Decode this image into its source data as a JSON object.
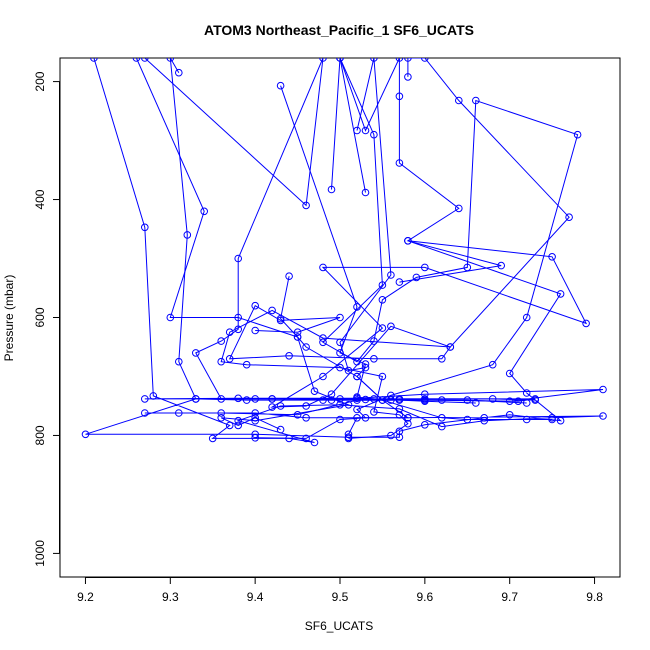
{
  "chart_data": {
    "type": "line",
    "title": "ATOM3 Northeast_Pacific_1 SF6_UCATS",
    "xlabel": "SF6_UCATS",
    "ylabel": "Pressure (mbar)",
    "xlim": [
      9.17,
      9.83
    ],
    "ylim": [
      1040,
      160
    ],
    "y_reversed": true,
    "x_ticks": [
      9.2,
      9.3,
      9.4,
      9.5,
      9.6,
      9.7,
      9.8
    ],
    "x_tick_labels": [
      "9.2",
      "9.3",
      "9.4",
      "9.5",
      "9.6",
      "9.7",
      "9.8"
    ],
    "y_ticks": [
      200,
      400,
      600,
      800,
      1000
    ],
    "y_tick_labels": [
      "200",
      "400",
      "600",
      "800",
      "1000"
    ],
    "grid": false,
    "legend": "none",
    "color": "#0000ff",
    "series": [
      {
        "points": [
          [
            9.21,
            160
          ],
          [
            9.27,
            447
          ],
          [
            9.28,
            733
          ],
          [
            9.37,
            783
          ],
          [
            9.35,
            805
          ],
          [
            9.44,
            805
          ],
          [
            9.47,
            812
          ],
          [
            9.38,
            775
          ],
          [
            9.43,
            750
          ],
          [
            9.5,
            748
          ],
          [
            9.57,
            755
          ],
          [
            9.62,
            785
          ],
          [
            9.67,
            775
          ],
          [
            9.75,
            770
          ],
          [
            9.81,
            767
          ],
          [
            9.58,
            770
          ],
          [
            9.46,
            770
          ],
          [
            9.4,
            762
          ],
          [
            9.31,
            762
          ],
          [
            9.27,
            762
          ],
          [
            9.36,
            762
          ],
          [
            9.45,
            765
          ],
          [
            9.52,
            740
          ],
          [
            9.6,
            740
          ],
          [
            9.7,
            742
          ],
          [
            9.81,
            722
          ],
          [
            9.6,
            730
          ],
          [
            9.52,
            737
          ],
          [
            9.38,
            737
          ],
          [
            9.27,
            738
          ],
          [
            9.42,
            738
          ],
          [
            9.53,
            739
          ],
          [
            9.62,
            740
          ],
          [
            9.71,
            742
          ],
          [
            9.73,
            738
          ],
          [
            9.6,
            738
          ],
          [
            9.5,
            738
          ],
          [
            9.4,
            738
          ],
          [
            9.33,
            738
          ],
          [
            9.2,
            798
          ],
          [
            9.4,
            798
          ],
          [
            9.51,
            803
          ],
          [
            9.57,
            803
          ],
          [
            9.57,
            793
          ],
          [
            9.6,
            782
          ],
          [
            9.67,
            770
          ],
          [
            9.7,
            765
          ],
          [
            9.76,
            775
          ],
          [
            9.72,
            728
          ],
          [
            9.7,
            695
          ],
          [
            9.76,
            560
          ],
          [
            9.58,
            470
          ],
          [
            9.75,
            497
          ],
          [
            9.79,
            610
          ],
          [
            9.6,
            515
          ],
          [
            9.48,
            515
          ],
          [
            9.55,
            618
          ],
          [
            9.48,
            700
          ],
          [
            9.42,
            752
          ],
          [
            9.46,
            750
          ],
          [
            9.49,
            730
          ],
          [
            9.56,
            615
          ],
          [
            9.63,
            650
          ],
          [
            9.62,
            670
          ],
          [
            9.54,
            670
          ],
          [
            9.44,
            665
          ],
          [
            9.37,
            670
          ],
          [
            9.4,
            580
          ],
          [
            9.43,
            605
          ],
          [
            9.5,
            600
          ],
          [
            9.45,
            625
          ],
          [
            9.4,
            622
          ]
        ]
      },
      {
        "points": [
          [
            9.26,
            160
          ],
          [
            9.34,
            420
          ],
          [
            9.3,
            600
          ],
          [
            9.38,
            600
          ],
          [
            9.45,
            633
          ],
          [
            9.47,
            725
          ],
          [
            9.51,
            748
          ],
          [
            9.4,
            775
          ],
          [
            9.36,
            770
          ],
          [
            9.38,
            783
          ],
          [
            9.4,
            770
          ],
          [
            9.43,
            790
          ]
        ]
      },
      {
        "points": [
          [
            9.31,
            185
          ],
          [
            9.3,
            160
          ],
          [
            9.32,
            460
          ],
          [
            9.31,
            675
          ],
          [
            9.33,
            738
          ],
          [
            9.39,
            740
          ],
          [
            9.48,
            740
          ],
          [
            9.56,
            740
          ],
          [
            9.57,
            738
          ],
          [
            9.68,
            738
          ],
          [
            9.73,
            740
          ]
        ]
      },
      {
        "points": [
          [
            9.27,
            160
          ],
          [
            9.46,
            410
          ],
          [
            9.48,
            160
          ],
          [
            9.38,
            500
          ],
          [
            9.38,
            620
          ],
          [
            9.36,
            640
          ],
          [
            9.33,
            660
          ],
          [
            9.36,
            738
          ],
          [
            9.42,
            738
          ],
          [
            9.49,
            740
          ],
          [
            9.57,
            740
          ],
          [
            9.65,
            740
          ],
          [
            9.72,
            745
          ]
        ]
      },
      {
        "points": [
          [
            9.43,
            207
          ],
          [
            9.52,
            582
          ],
          [
            9.5,
            660
          ],
          [
            9.53,
            679
          ],
          [
            9.52,
            735
          ],
          [
            9.54,
            738
          ],
          [
            9.6,
            742
          ],
          [
            9.66,
            745
          ]
        ]
      },
      {
        "points": [
          [
            9.49,
            383
          ],
          [
            9.5,
            160
          ],
          [
            9.54,
            290
          ],
          [
            9.55,
            545
          ],
          [
            9.48,
            642
          ],
          [
            9.52,
            675
          ],
          [
            9.54,
            640
          ],
          [
            9.55,
            570
          ],
          [
            9.59,
            532
          ],
          [
            9.65,
            515
          ],
          [
            9.66,
            232
          ],
          [
            9.78,
            290
          ],
          [
            9.72,
            600
          ],
          [
            9.68,
            680
          ],
          [
            9.56,
            732
          ],
          [
            9.52,
            756
          ],
          [
            9.53,
            770
          ],
          [
            9.5,
            773
          ],
          [
            9.46,
            805
          ],
          [
            9.4,
            804
          ]
        ]
      },
      {
        "points": [
          [
            9.52,
            283
          ],
          [
            9.54,
            160
          ],
          [
            9.56,
            528
          ],
          [
            9.5,
            642
          ],
          [
            9.51,
            690
          ],
          [
            9.53,
            685
          ],
          [
            9.52,
            700
          ],
          [
            9.55,
            740
          ],
          [
            9.58,
            770
          ],
          [
            9.52,
            770
          ],
          [
            9.51,
            798
          ]
        ]
      },
      {
        "points": [
          [
            9.53,
            388
          ],
          [
            9.5,
            160
          ],
          [
            9.53,
            283
          ],
          [
            9.57,
            160
          ],
          [
            9.57,
            225
          ],
          [
            9.57,
            338
          ],
          [
            9.64,
            415
          ],
          [
            9.58,
            470
          ],
          [
            9.69,
            512
          ],
          [
            9.57,
            540
          ]
        ]
      },
      {
        "points": [
          [
            9.58,
            192
          ],
          [
            9.58,
            160
          ],
          [
            9.6,
            160
          ],
          [
            9.64,
            232
          ],
          [
            9.77,
            430
          ],
          [
            9.63,
            650
          ],
          [
            9.48,
            635
          ],
          [
            9.42,
            588
          ],
          [
            9.37,
            625
          ],
          [
            9.36,
            675
          ],
          [
            9.39,
            680
          ],
          [
            9.5,
            685
          ],
          [
            9.55,
            700
          ],
          [
            9.54,
            760
          ],
          [
            9.57,
            765
          ],
          [
            9.58,
            780
          ],
          [
            9.56,
            800
          ],
          [
            9.51,
            805
          ]
        ]
      },
      {
        "points": [
          [
            9.44,
            530
          ],
          [
            9.43,
            602
          ],
          [
            9.45,
            633
          ],
          [
            9.46,
            650
          ],
          [
            9.52,
            700
          ],
          [
            9.55,
            740
          ],
          [
            9.62,
            770
          ],
          [
            9.65,
            773
          ],
          [
            9.72,
            773
          ],
          [
            9.75,
            773
          ]
        ]
      }
    ]
  }
}
